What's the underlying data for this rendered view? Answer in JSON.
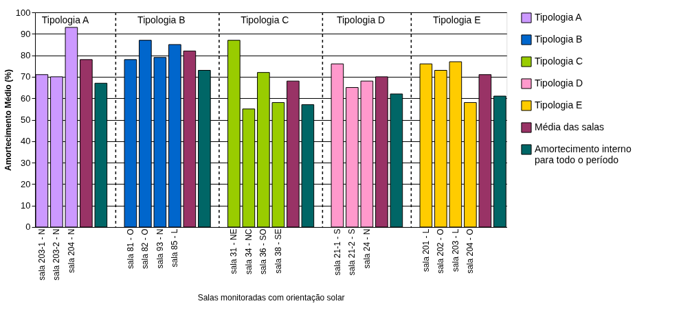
{
  "chart_data": {
    "type": "bar",
    "ylabel": "Amortecimento Médio (%)",
    "xlabel": "Salas monitoradas com orientação solar",
    "categories": [
      "sala 203-1 - N",
      "sala 203-2 - N",
      "sala 204 - N",
      null,
      null,
      null,
      "sala 81 - O",
      "sala 82 - O",
      "sala 93 - N",
      "sala 85 - L",
      null,
      null,
      null,
      "sala 31 - NE",
      "sala 34 - NC",
      "sala 36 - SO",
      "sala 38 - SE",
      null,
      null,
      null,
      "sala 21-1 - S",
      "sala 21-2 - S",
      "sala 24 - N",
      null,
      null,
      null,
      "sala 201 - L",
      "sala 202 - O",
      "sala 203 - L",
      "sala 204 - O",
      null,
      null
    ],
    "series": [
      {
        "name": "Tipologia A",
        "color": "#cc99ff",
        "values": [
          71,
          70,
          93,
          null,
          null,
          null,
          null,
          null,
          null,
          null,
          null,
          null,
          null,
          null,
          null,
          null,
          null,
          null,
          null,
          null,
          null,
          null,
          null,
          null,
          null,
          null,
          null,
          null,
          null,
          null,
          null,
          null
        ]
      },
      {
        "name": "Tipologia B",
        "color": "#0066cc",
        "values": [
          null,
          null,
          null,
          null,
          null,
          null,
          78,
          87,
          79,
          85,
          null,
          null,
          null,
          null,
          null,
          null,
          null,
          null,
          null,
          null,
          null,
          null,
          null,
          null,
          null,
          null,
          null,
          null,
          null,
          null,
          null,
          null
        ]
      },
      {
        "name": "Tipologia C",
        "color": "#99cc00",
        "values": [
          null,
          null,
          null,
          null,
          null,
          null,
          null,
          null,
          null,
          null,
          null,
          null,
          null,
          87,
          55,
          72,
          58,
          null,
          null,
          null,
          null,
          null,
          null,
          null,
          null,
          null,
          null,
          null,
          null,
          null,
          null,
          null
        ]
      },
      {
        "name": "Tipologia D",
        "color": "#ff99cc",
        "values": [
          null,
          null,
          null,
          null,
          null,
          null,
          null,
          null,
          null,
          null,
          null,
          null,
          null,
          null,
          null,
          null,
          null,
          null,
          null,
          null,
          76,
          65,
          68,
          null,
          null,
          null,
          null,
          null,
          null,
          null,
          null,
          null
        ]
      },
      {
        "name": "Tipologia E",
        "color": "#ffcc00",
        "values": [
          null,
          null,
          null,
          null,
          null,
          null,
          null,
          null,
          null,
          null,
          null,
          null,
          null,
          null,
          null,
          null,
          null,
          null,
          null,
          null,
          null,
          null,
          null,
          null,
          null,
          null,
          76,
          73,
          77,
          58,
          null,
          null
        ]
      },
      {
        "name": "Média das salas",
        "color": "#993366",
        "values": [
          null,
          null,
          null,
          78,
          null,
          null,
          null,
          null,
          null,
          null,
          82,
          null,
          null,
          null,
          null,
          null,
          null,
          68,
          null,
          null,
          null,
          null,
          null,
          70,
          null,
          null,
          null,
          null,
          null,
          null,
          71,
          null
        ]
      },
      {
        "name": "Amortecimento interno para todo o período",
        "color": "#006666",
        "values": [
          null,
          null,
          null,
          null,
          67,
          null,
          null,
          null,
          null,
          null,
          null,
          73,
          null,
          null,
          null,
          null,
          null,
          null,
          57,
          null,
          null,
          null,
          null,
          null,
          62,
          null,
          null,
          null,
          null,
          null,
          null,
          61
        ]
      }
    ],
    "annotations": [
      "Tipologia A",
      "Tipologia B",
      "Tipologia C",
      "Tipologia D",
      "Tipologia E"
    ],
    "ylim": [
      0,
      100
    ],
    "yticks": [
      0,
      10,
      20,
      30,
      40,
      50,
      60,
      70,
      80,
      90,
      100
    ],
    "grid": true,
    "legend": "right"
  }
}
